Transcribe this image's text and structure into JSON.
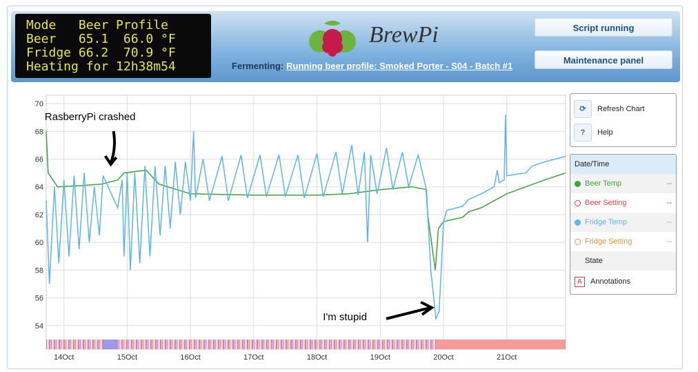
{
  "lcd": {
    "lines": [
      "Mode   Beer Profile",
      "Beer   65.1  66.0 °F",
      "Fridge 66.2  70.9 °F",
      "Heating for 12h38m54"
    ]
  },
  "logo": "BrewPi",
  "status": {
    "label": "Fermenting:",
    "link": "Running beer profile: Smoked Porter - S04 - Batch #1"
  },
  "buttons": [
    "Script running",
    "Maintenance panel"
  ],
  "chart_buttons": [
    {
      "icon": "⟳",
      "label": "Refresh Chart"
    },
    {
      "icon": "?",
      "label": "Help"
    }
  ],
  "legend": {
    "title": "Date/Time",
    "items": [
      {
        "name": "Beer Temp",
        "color": "#41a13d",
        "value": "--"
      },
      {
        "name": "Beer Setting",
        "color": "#e8434b",
        "value": "--"
      },
      {
        "name": "Fridge Temp",
        "color": "#5cb4ec",
        "value": "--"
      },
      {
        "name": "Fridge Setting",
        "color": "#f0903c",
        "value": "--"
      }
    ],
    "state": "State",
    "annotations": {
      "icon": "A",
      "label": "Annotations"
    }
  },
  "chart_data": {
    "type": "line",
    "xlim": [
      13.72,
      21.93
    ],
    "ylim": [
      52.3,
      70.6
    ],
    "yticks": [
      54,
      56,
      58,
      60,
      62,
      64,
      66,
      68,
      70
    ],
    "xticks": [
      {
        "value": 14,
        "label": "14Oct"
      },
      {
        "value": 15,
        "label": "15Oct"
      },
      {
        "value": 16,
        "label": "16Oct"
      },
      {
        "value": 17,
        "label": "17Oct"
      },
      {
        "value": 18,
        "label": "18Oct"
      },
      {
        "value": 19,
        "label": "19Oct"
      },
      {
        "value": 20,
        "label": "20Oct"
      },
      {
        "value": 21,
        "label": "21Oct"
      }
    ],
    "grid": true,
    "series": [
      {
        "name": "Beer Temp",
        "color": "#41a13d",
        "x": [
          13.72,
          13.75,
          13.9,
          14.3,
          14.6,
          14.85,
          14.95,
          15.3,
          15.5,
          16.0,
          17.0,
          18.0,
          18.5,
          19.0,
          19.5,
          19.73,
          19.75,
          19.87,
          19.92,
          20.0,
          20.3,
          20.4,
          20.6,
          20.8,
          21.0,
          21.3,
          21.6,
          21.93
        ],
        "values": [
          68,
          65,
          64,
          64.1,
          64.2,
          64.5,
          65,
          65.2,
          64.2,
          63.5,
          63.4,
          63.4,
          63.5,
          63.8,
          64,
          63.8,
          62,
          58,
          61,
          61.5,
          61.8,
          62.2,
          62.5,
          63,
          63.5,
          64,
          64.5,
          65
        ]
      },
      {
        "name": "Fridge Temp",
        "color": "#5cb4ec",
        "x": [
          13.72,
          13.77,
          13.85,
          13.92,
          14.0,
          14.08,
          14.16,
          14.24,
          14.32,
          14.4,
          14.48,
          14.56,
          14.62,
          14.85,
          14.92,
          14.95,
          15.0,
          15.05,
          15.12,
          15.2,
          15.28,
          15.36,
          15.44,
          15.52,
          15.6,
          15.68,
          15.76,
          15.84,
          15.92,
          16.0,
          16.05,
          16.08,
          16.2,
          16.3,
          16.5,
          16.6,
          16.8,
          16.9,
          17.1,
          17.2,
          17.4,
          17.5,
          17.7,
          17.8,
          18.0,
          18.1,
          18.3,
          18.4,
          18.55,
          18.65,
          18.75,
          18.8,
          18.85,
          18.95,
          19.1,
          19.2,
          19.35,
          19.45,
          19.6,
          19.72,
          19.75,
          19.8,
          19.88,
          19.93,
          19.97,
          20.0,
          20.05,
          20.3,
          20.4,
          20.6,
          20.8,
          20.85,
          20.88,
          20.96,
          20.98,
          21.0,
          21.3,
          21.4,
          21.6,
          21.93
        ],
        "values": [
          63,
          57,
          64,
          58.5,
          64.5,
          59,
          64.8,
          59.5,
          65,
          60,
          64,
          60.5,
          64.8,
          62.5,
          64.5,
          59,
          65,
          58,
          65,
          58.5,
          65.5,
          59,
          65.5,
          60.5,
          65.5,
          61,
          65.8,
          62,
          65.8,
          63,
          68,
          63.2,
          66,
          63,
          66.2,
          63,
          66.3,
          63.2,
          66.3,
          63.3,
          66.3,
          63.3,
          66.3,
          63.2,
          66.4,
          63.3,
          66.5,
          63.5,
          67,
          63.4,
          66.5,
          60,
          66.3,
          63.5,
          66.8,
          63.8,
          66.5,
          64,
          66.3,
          64,
          62,
          58,
          54.5,
          55,
          58.5,
          61.5,
          62.3,
          62.6,
          63.1,
          63.5,
          64,
          65.2,
          64.3,
          64.5,
          69.2,
          64.8,
          65,
          65.5,
          65.8,
          66.2
        ]
      }
    ],
    "annotations": [
      {
        "text": "RasberryPi crashed",
        "x": 14.85,
        "y": 64.5
      },
      {
        "text": "I'm stupid",
        "x": 19.88,
        "y": 54.5
      }
    ]
  }
}
